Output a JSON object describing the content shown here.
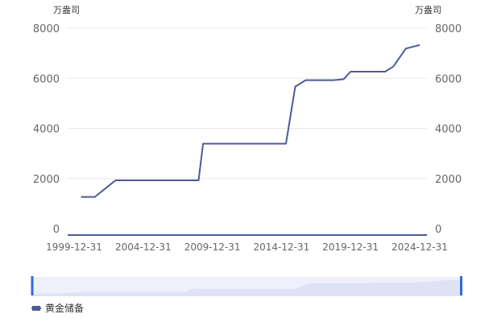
{
  "chart_data": {
    "type": "line",
    "y_unit": "万盎司",
    "y_ticks": [
      0,
      2000,
      4000,
      6000,
      8000
    ],
    "ylim": [
      0,
      8000
    ],
    "x_tick_labels": [
      "1999-12-31",
      "2004-12-31",
      "2009-12-31",
      "2014-12-31",
      "2019-12-31",
      "2024-12-31"
    ],
    "series": [
      {
        "name": "黄金储备",
        "color": "#4d5a98",
        "points": [
          {
            "x": "2000-06-30",
            "y": 1267
          },
          {
            "x": "2001-06-30",
            "y": 1267
          },
          {
            "x": "2002-12-31",
            "y": 1929
          },
          {
            "x": "2008-12-31",
            "y": 1929
          },
          {
            "x": "2009-04-30",
            "y": 3389
          },
          {
            "x": "2015-04-30",
            "y": 3389
          },
          {
            "x": "2015-12-31",
            "y": 5666
          },
          {
            "x": "2016-09-30",
            "y": 5924
          },
          {
            "x": "2018-09-30",
            "y": 5924
          },
          {
            "x": "2019-06-30",
            "y": 5962
          },
          {
            "x": "2019-12-31",
            "y": 6264
          },
          {
            "x": "2022-06-30",
            "y": 6264
          },
          {
            "x": "2023-01-31",
            "y": 6464
          },
          {
            "x": "2023-12-31",
            "y": 7187
          },
          {
            "x": "2024-12-31",
            "y": 7329
          }
        ]
      }
    ],
    "dataZoom": {
      "start_percent": 0,
      "end_percent": 100
    }
  },
  "legend": {
    "label": "黄金储备"
  }
}
